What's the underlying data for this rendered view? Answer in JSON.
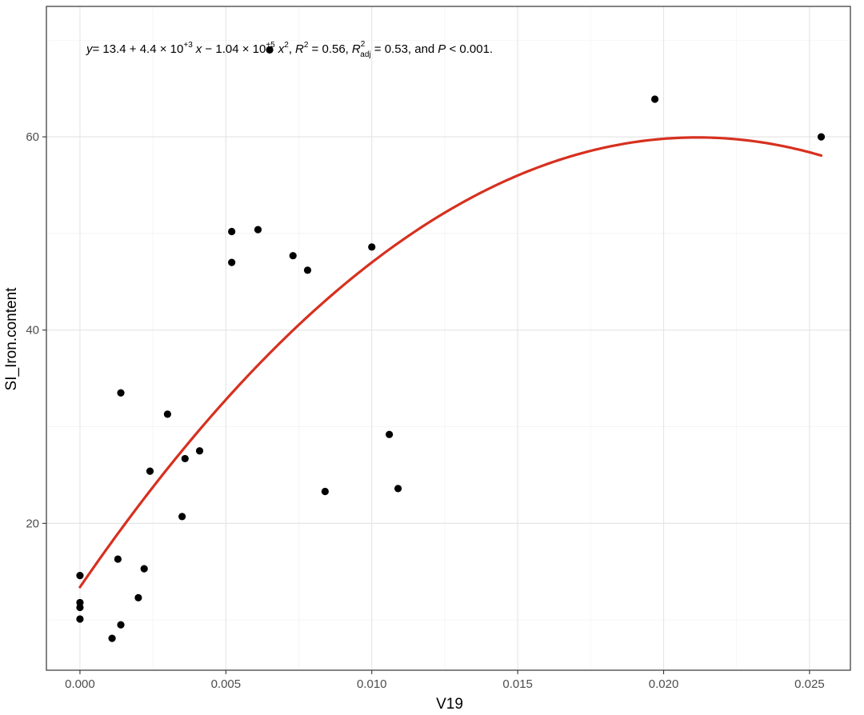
{
  "chart_data": {
    "type": "scatter",
    "xlabel": "V19",
    "ylabel": "SI_Iron.content",
    "xlim": [
      -0.00115,
      0.0264
    ],
    "ylim": [
      4.8,
      73.5
    ],
    "x_ticks": [
      0.0,
      0.005,
      0.01,
      0.015,
      0.02,
      0.025
    ],
    "x_tick_labels": [
      "0.000",
      "0.005",
      "0.010",
      "0.015",
      "0.020",
      "0.025"
    ],
    "y_ticks": [
      20,
      40,
      60
    ],
    "y_tick_labels": [
      "20",
      "40",
      "60"
    ],
    "grid": true,
    "theme": "bw",
    "annotation": {
      "y": "y",
      "eq": "= 13.4 + 4.4 × 10",
      "exp1": "+3",
      "x1": "x",
      "mid": " − 1.04 × 10",
      "exp2": "+5",
      "x2": "x",
      "sq": "2",
      "comma1": ",",
      "R": "R",
      "R2sup": "2",
      "r2val": " = 0.56,",
      "Radj": "R",
      "Radjsup": "2",
      "Radjsub": "adj",
      "radjval": " = 0.53, and",
      "P": "P",
      "pval": " < 0.001."
    },
    "points": [
      {
        "x": 0.0,
        "y": 14.6
      },
      {
        "x": 0.0,
        "y": 11.8
      },
      {
        "x": 0.0,
        "y": 11.3
      },
      {
        "x": 0.0,
        "y": 10.1
      },
      {
        "x": 0.0011,
        "y": 8.1
      },
      {
        "x": 0.0013,
        "y": 16.3
      },
      {
        "x": 0.0014,
        "y": 33.5
      },
      {
        "x": 0.0014,
        "y": 9.5
      },
      {
        "x": 0.002,
        "y": 12.3
      },
      {
        "x": 0.0022,
        "y": 15.3
      },
      {
        "x": 0.0024,
        "y": 25.4
      },
      {
        "x": 0.003,
        "y": 31.3
      },
      {
        "x": 0.0035,
        "y": 20.7
      },
      {
        "x": 0.0036,
        "y": 26.7
      },
      {
        "x": 0.0041,
        "y": 27.5
      },
      {
        "x": 0.0052,
        "y": 50.2
      },
      {
        "x": 0.0052,
        "y": 47.0
      },
      {
        "x": 0.0061,
        "y": 50.4
      },
      {
        "x": 0.0065,
        "y": 69.0
      },
      {
        "x": 0.0073,
        "y": 47.7
      },
      {
        "x": 0.0078,
        "y": 46.2
      },
      {
        "x": 0.0084,
        "y": 23.3
      },
      {
        "x": 0.01,
        "y": 48.6
      },
      {
        "x": 0.0106,
        "y": 29.2
      },
      {
        "x": 0.0109,
        "y": 23.6
      },
      {
        "x": 0.0197,
        "y": 63.9
      },
      {
        "x": 0.0254,
        "y": 60.0
      }
    ],
    "fit": {
      "type": "quadratic",
      "name": "",
      "color": "#d7301f",
      "coefficients": {
        "a": 13.4,
        "b": 4400,
        "c": -104000
      },
      "x_range": [
        0.0,
        0.0254
      ]
    },
    "point_color": "#000000"
  }
}
